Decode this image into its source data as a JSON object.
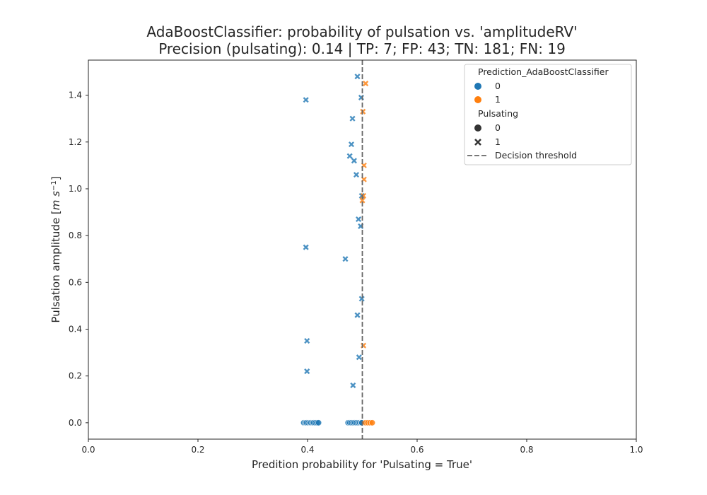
{
  "chart_data": {
    "type": "scatter",
    "title": "AdaBoostClassifier: probability of pulsation vs. 'amplitudeRV'",
    "subtitle": "Precision (pulsating): 0.14 | TP: 7; FP: 43; TN: 181; FN: 19",
    "xlabel": "Predition probability for 'Pulsating = True'",
    "ylabel": "Pulsation amplitude [m s⁻¹]",
    "xlim": [
      0.0,
      1.0
    ],
    "ylim": [
      -0.07,
      1.55
    ],
    "xticks": [
      "0.0",
      "0.2",
      "0.4",
      "0.6",
      "0.8",
      "1.0"
    ],
    "yticks": [
      "0.0",
      "0.2",
      "0.4",
      "0.6",
      "0.8",
      "1.0",
      "1.2",
      "1.4"
    ],
    "threshold": 0.5,
    "grid": false,
    "legend_position": "top-right",
    "legend": {
      "hue_title": "Prediction_AdaBoostClassifier",
      "hue_items": [
        {
          "label": "0",
          "color": "#1f77b4"
        },
        {
          "label": "1",
          "color": "#ff7f0e"
        }
      ],
      "style_title": "Pulsating",
      "style_items": [
        {
          "label": "0",
          "marker": "circle"
        },
        {
          "label": "1",
          "marker": "x"
        }
      ],
      "threshold_label": "Decision threshold"
    },
    "points": [
      {
        "x": 0.491,
        "y": 1.48,
        "pred": 0,
        "pulsating": 1
      },
      {
        "x": 0.506,
        "y": 1.45,
        "pred": 1,
        "pulsating": 1
      },
      {
        "x": 0.498,
        "y": 1.39,
        "pred": 0,
        "pulsating": 1
      },
      {
        "x": 0.397,
        "y": 1.38,
        "pred": 0,
        "pulsating": 1
      },
      {
        "x": 0.501,
        "y": 1.33,
        "pred": 1,
        "pulsating": 1
      },
      {
        "x": 0.482,
        "y": 1.3,
        "pred": 0,
        "pulsating": 1
      },
      {
        "x": 0.48,
        "y": 1.19,
        "pred": 0,
        "pulsating": 1
      },
      {
        "x": 0.477,
        "y": 1.14,
        "pred": 0,
        "pulsating": 1
      },
      {
        "x": 0.485,
        "y": 1.12,
        "pred": 0,
        "pulsating": 1
      },
      {
        "x": 0.503,
        "y": 1.1,
        "pred": 1,
        "pulsating": 1
      },
      {
        "x": 0.489,
        "y": 1.06,
        "pred": 0,
        "pulsating": 1
      },
      {
        "x": 0.503,
        "y": 1.04,
        "pred": 1,
        "pulsating": 1
      },
      {
        "x": 0.499,
        "y": 0.97,
        "pred": 0,
        "pulsating": 1
      },
      {
        "x": 0.502,
        "y": 0.97,
        "pred": 1,
        "pulsating": 1
      },
      {
        "x": 0.5,
        "y": 0.95,
        "pred": 1,
        "pulsating": 1
      },
      {
        "x": 0.493,
        "y": 0.87,
        "pred": 0,
        "pulsating": 1
      },
      {
        "x": 0.497,
        "y": 0.84,
        "pred": 0,
        "pulsating": 1
      },
      {
        "x": 0.397,
        "y": 0.75,
        "pred": 0,
        "pulsating": 1
      },
      {
        "x": 0.469,
        "y": 0.7,
        "pred": 0,
        "pulsating": 1
      },
      {
        "x": 0.499,
        "y": 0.53,
        "pred": 0,
        "pulsating": 1
      },
      {
        "x": 0.491,
        "y": 0.46,
        "pred": 0,
        "pulsating": 1
      },
      {
        "x": 0.399,
        "y": 0.35,
        "pred": 0,
        "pulsating": 1
      },
      {
        "x": 0.502,
        "y": 0.33,
        "pred": 1,
        "pulsating": 1
      },
      {
        "x": 0.494,
        "y": 0.28,
        "pred": 0,
        "pulsating": 1
      },
      {
        "x": 0.399,
        "y": 0.22,
        "pred": 0,
        "pulsating": 1
      },
      {
        "x": 0.483,
        "y": 0.16,
        "pred": 0,
        "pulsating": 1
      },
      {
        "x": 0.393,
        "y": 0.0,
        "pred": 0,
        "pulsating": 0
      },
      {
        "x": 0.396,
        "y": 0.0,
        "pred": 0,
        "pulsating": 0
      },
      {
        "x": 0.398,
        "y": 0.0,
        "pred": 0,
        "pulsating": 0
      },
      {
        "x": 0.401,
        "y": 0.0,
        "pred": 0,
        "pulsating": 0
      },
      {
        "x": 0.404,
        "y": 0.0,
        "pred": 0,
        "pulsating": 0
      },
      {
        "x": 0.406,
        "y": 0.0,
        "pred": 0,
        "pulsating": 0
      },
      {
        "x": 0.409,
        "y": 0.0,
        "pred": 0,
        "pulsating": 0
      },
      {
        "x": 0.411,
        "y": 0.0,
        "pred": 0,
        "pulsating": 0
      },
      {
        "x": 0.414,
        "y": 0.0,
        "pred": 0,
        "pulsating": 0
      },
      {
        "x": 0.417,
        "y": 0.0,
        "pred": 0,
        "pulsating": 0
      },
      {
        "x": 0.42,
        "y": 0.0,
        "pred": 0,
        "pulsating": 0
      },
      {
        "x": 0.474,
        "y": 0.0,
        "pred": 0,
        "pulsating": 0
      },
      {
        "x": 0.477,
        "y": 0.0,
        "pred": 0,
        "pulsating": 0
      },
      {
        "x": 0.48,
        "y": 0.0,
        "pred": 0,
        "pulsating": 0
      },
      {
        "x": 0.483,
        "y": 0.0,
        "pred": 0,
        "pulsating": 0
      },
      {
        "x": 0.486,
        "y": 0.0,
        "pred": 0,
        "pulsating": 0
      },
      {
        "x": 0.489,
        "y": 0.0,
        "pred": 0,
        "pulsating": 0
      },
      {
        "x": 0.492,
        "y": 0.0,
        "pred": 0,
        "pulsating": 0
      },
      {
        "x": 0.495,
        "y": 0.0,
        "pred": 0,
        "pulsating": 0
      },
      {
        "x": 0.498,
        "y": 0.0,
        "pred": 0,
        "pulsating": 0
      },
      {
        "x": 0.499,
        "y": 0.0,
        "pred": 0,
        "pulsating": 0
      },
      {
        "x": 0.506,
        "y": 0.0,
        "pred": 1,
        "pulsating": 0
      },
      {
        "x": 0.51,
        "y": 0.0,
        "pred": 1,
        "pulsating": 0
      },
      {
        "x": 0.514,
        "y": 0.0,
        "pred": 1,
        "pulsating": 0
      },
      {
        "x": 0.518,
        "y": 0.0,
        "pred": 1,
        "pulsating": 0
      }
    ]
  }
}
